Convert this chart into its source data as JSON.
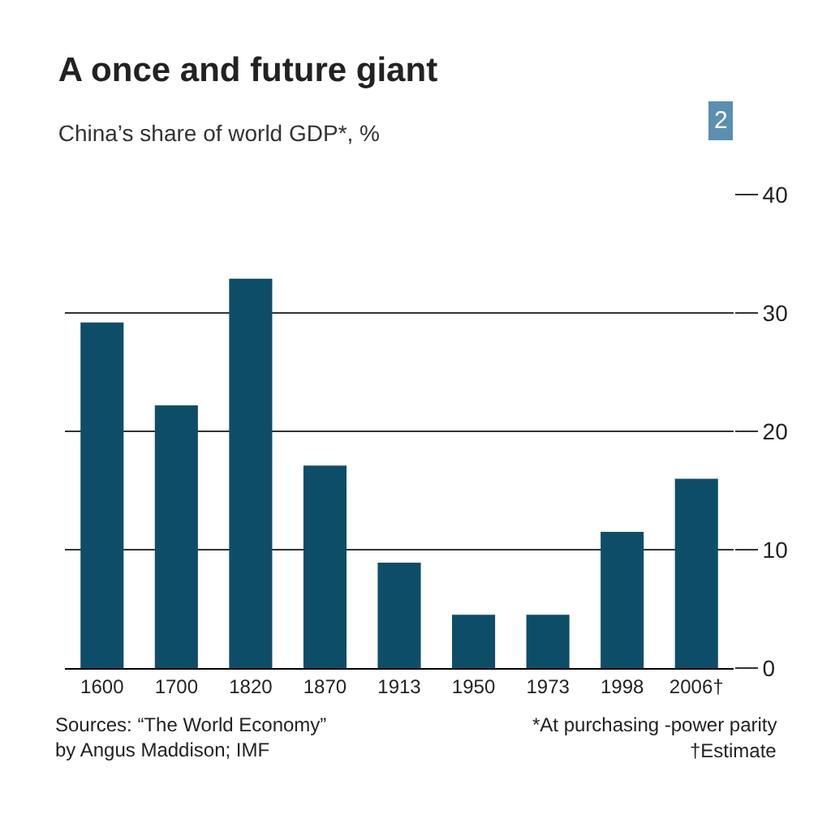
{
  "chart_data": {
    "type": "bar",
    "title": "A once and future giant",
    "subtitle": "China’s share of world GDP*, %",
    "categories": [
      "1600",
      "1700",
      "1820",
      "1870",
      "1913",
      "1950",
      "1973",
      "1998",
      "2006†"
    ],
    "values": [
      29.2,
      22.2,
      32.9,
      17.1,
      8.9,
      4.5,
      4.5,
      11.5,
      16
    ],
    "color": "#0e4d68",
    "ylim": [
      0,
      40
    ],
    "yticks": [
      0,
      10,
      20,
      30,
      40
    ],
    "grid": "y",
    "annotations": [
      "2",
      "Sources: “The World Economy” by Angus Maddison; IMF",
      "*At purchasing -power parity",
      "†Estimate"
    ]
  }
}
